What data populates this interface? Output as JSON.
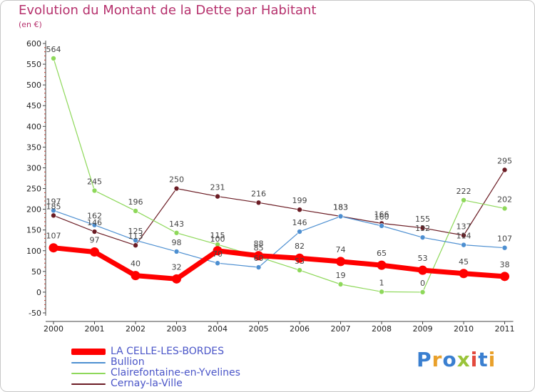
{
  "chart_data": {
    "type": "line",
    "title": "Evolution du Montant de la Dette par Habitant",
    "unit_label": "(en €)",
    "x": [
      "2000",
      "2001",
      "2002",
      "2003",
      "2004",
      "2005",
      "2006",
      "2007",
      "2008",
      "2009",
      "2010",
      "2011"
    ],
    "ylim": [
      -50,
      600
    ],
    "yticks": [
      -50,
      0,
      50,
      100,
      150,
      200,
      250,
      300,
      350,
      400,
      450,
      500,
      550,
      600
    ],
    "grid": false,
    "legend_position": "bottom-left",
    "series": [
      {
        "name": "LA CELLE-LES-BORDES",
        "color": "#ff0000",
        "values": [
          107,
          97,
          40,
          32,
          100,
          88,
          82,
          74,
          65,
          53,
          45,
          38
        ]
      },
      {
        "name": "Bullion",
        "color": "#4d8fd1",
        "values": [
          197,
          162,
          125,
          98,
          70,
          60,
          146,
          183,
          160,
          132,
          114,
          107
        ]
      },
      {
        "name": "Clairefontaine-en-Yvelines",
        "color": "#8ed85a",
        "values": [
          564,
          245,
          196,
          143,
          115,
          85,
          53,
          19,
          1,
          0,
          222,
          202
        ]
      },
      {
        "name": "Cernay-la-Ville",
        "color": "#6b1c24",
        "values": [
          185,
          146,
          113,
          250,
          231,
          216,
          199,
          183,
          166,
          155,
          137,
          295
        ]
      }
    ]
  },
  "brand": {
    "name": "Proxiti",
    "letters": [
      {
        "ch": "P",
        "color": "#3a7fd0"
      },
      {
        "ch": "r",
        "color": "#e9a02a"
      },
      {
        "ch": "o",
        "color": "#3a7fd0"
      },
      {
        "ch": "x",
        "color": "#9ac43a"
      },
      {
        "ch": "i",
        "color": "#e3493d"
      },
      {
        "ch": "t",
        "color": "#3a7fd0"
      },
      {
        "ch": "i",
        "color": "#e9a02a"
      }
    ]
  }
}
